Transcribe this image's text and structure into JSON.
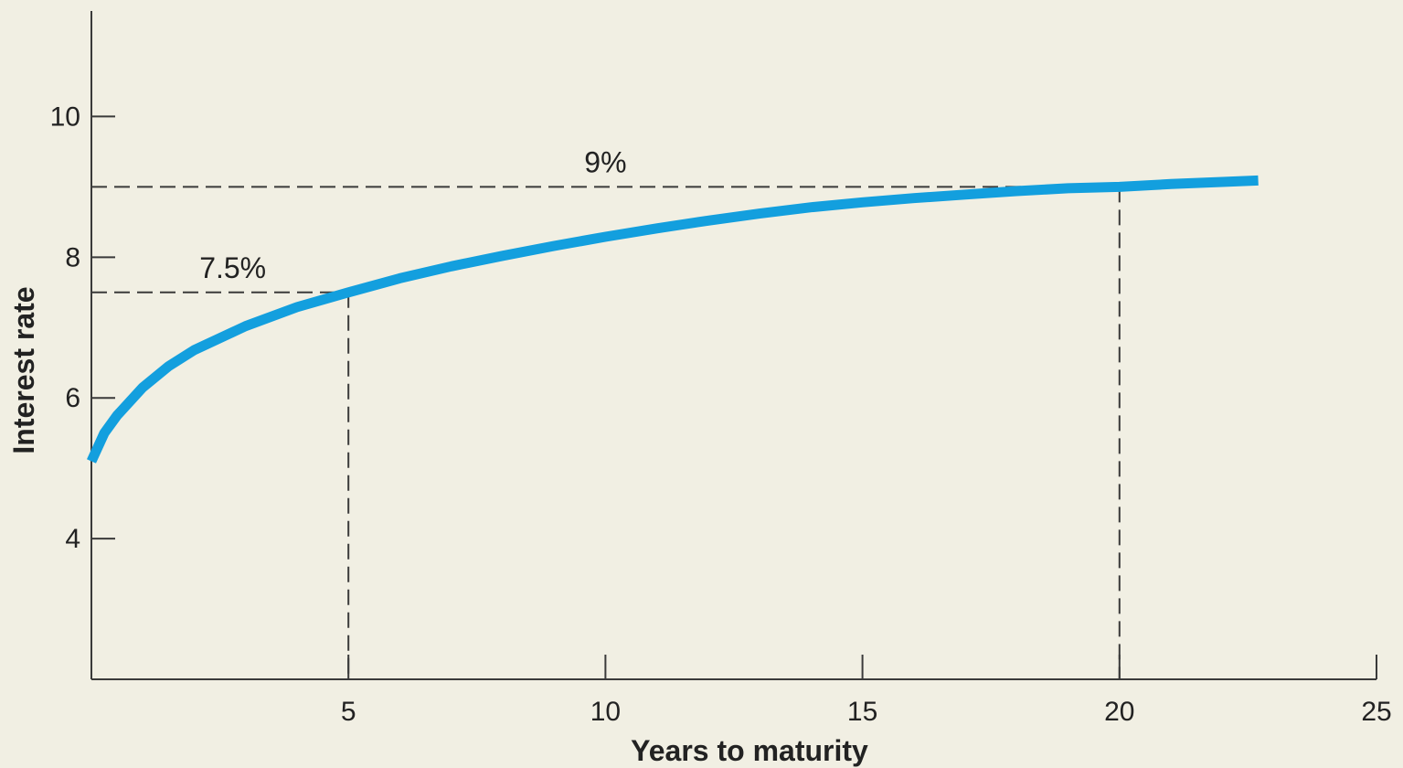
{
  "chart_data": {
    "type": "line",
    "xlabel": "Years to maturity",
    "ylabel": "Interest rate",
    "xlim": [
      0,
      25
    ],
    "ylim": [
      2,
      11.5
    ],
    "x_ticks": [
      "5",
      "10",
      "15",
      "20",
      "25"
    ],
    "y_ticks": [
      "4",
      "6",
      "8",
      "10"
    ],
    "grid": false,
    "line_color": "#139fde",
    "x": [
      0,
      0.25,
      0.5,
      1,
      1.5,
      2,
      3,
      4,
      5,
      6,
      7,
      8,
      9,
      10,
      11,
      12,
      13,
      14,
      15,
      16,
      17,
      18,
      19,
      20,
      21,
      22,
      22.7
    ],
    "y": [
      5.1,
      5.5,
      5.75,
      6.15,
      6.45,
      6.68,
      7.02,
      7.29,
      7.5,
      7.7,
      7.87,
      8.02,
      8.16,
      8.29,
      8.41,
      8.52,
      8.62,
      8.71,
      8.78,
      8.84,
      8.89,
      8.94,
      8.98,
      9.0,
      9.04,
      9.07,
      9.09
    ],
    "reference_lines": [
      {
        "x": 5,
        "y": 7.5,
        "label": "7.5%"
      },
      {
        "x": 20,
        "y": 9,
        "label": "9%"
      }
    ]
  }
}
